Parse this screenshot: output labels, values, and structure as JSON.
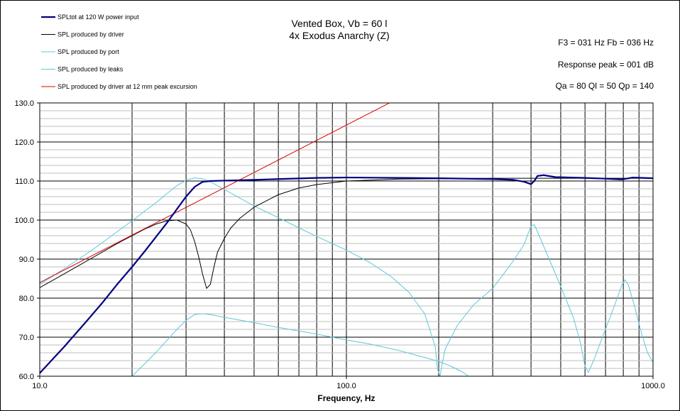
{
  "chart_data": {
    "type": "line",
    "title": "Vented Box, Vb = 60 l",
    "subtitle": "4x Exodus Anarchy (Z)",
    "xlabel": "Frequency, Hz",
    "ylabel": "",
    "xscale": "log",
    "xlim": [
      10,
      1000
    ],
    "ylim": [
      60,
      130
    ],
    "x_tick_labels": [
      "10.0",
      "100.0",
      "1000.0"
    ],
    "y_tick_labels": [
      "60.0",
      "70.0",
      "80.0",
      "90.0",
      "100.0",
      "110.0",
      "120.0",
      "130.0"
    ],
    "grid": true,
    "legend_position": "top-left",
    "info_lines": [
      "F3 = 031  Hz  Fb = 036  Hz",
      "Response peak = 001  dB",
      "Qa = 80   Ql = 50   Qp = 140"
    ],
    "series": [
      {
        "name": "SPLtot at 120 W power input",
        "color": "#000080",
        "width": 2.2,
        "points": [
          [
            10,
            60.8
          ],
          [
            12,
            67.5
          ],
          [
            14,
            73.5
          ],
          [
            16,
            78.8
          ],
          [
            18,
            83.8
          ],
          [
            20,
            88
          ],
          [
            22,
            92
          ],
          [
            24,
            95.8
          ],
          [
            26,
            99.3
          ],
          [
            28,
            102.8
          ],
          [
            30,
            106
          ],
          [
            32,
            108.5
          ],
          [
            34,
            109.8
          ],
          [
            36,
            110
          ],
          [
            40,
            110.1
          ],
          [
            50,
            110.3
          ],
          [
            60,
            110.5
          ],
          [
            80,
            110.8
          ],
          [
            100,
            110.9
          ],
          [
            150,
            110.8
          ],
          [
            200,
            110.7
          ],
          [
            300,
            110.5
          ],
          [
            350,
            110.3
          ],
          [
            380,
            109.8
          ],
          [
            400,
            109.2
          ],
          [
            410,
            110
          ],
          [
            420,
            111.3
          ],
          [
            440,
            111.5
          ],
          [
            480,
            111
          ],
          [
            600,
            110.8
          ],
          [
            700,
            110.6
          ],
          [
            790,
            110.4
          ],
          [
            820,
            110.6
          ],
          [
            860,
            110.9
          ],
          [
            1000,
            110.7
          ]
        ]
      },
      {
        "name": "SPL produced by driver",
        "color": "#000000",
        "width": 1,
        "points": [
          [
            10,
            82.7
          ],
          [
            12,
            86.2
          ],
          [
            14,
            89.2
          ],
          [
            16,
            91.8
          ],
          [
            18,
            94.1
          ],
          [
            20,
            96
          ],
          [
            22,
            97.7
          ],
          [
            24,
            99
          ],
          [
            26,
            99.8
          ],
          [
            28,
            100
          ],
          [
            30,
            99
          ],
          [
            31,
            97.5
          ],
          [
            32,
            94.5
          ],
          [
            33,
            90.5
          ],
          [
            34,
            86
          ],
          [
            35,
            82.5
          ],
          [
            36,
            83.5
          ],
          [
            37,
            88
          ],
          [
            38,
            91.8
          ],
          [
            40,
            95.3
          ],
          [
            42,
            98
          ],
          [
            45,
            100.5
          ],
          [
            50,
            103.3
          ],
          [
            60,
            106.5
          ],
          [
            70,
            108.2
          ],
          [
            80,
            109.1
          ],
          [
            100,
            110
          ],
          [
            150,
            110.5
          ],
          [
            200,
            110.6
          ],
          [
            300,
            110.7
          ],
          [
            1000,
            110.7
          ]
        ]
      },
      {
        "name": "SPL produced by port",
        "color": "#5bc8d8",
        "width": 1,
        "points": [
          [
            10,
            83.5
          ],
          [
            12,
            87.5
          ],
          [
            14,
            91
          ],
          [
            16,
            94.2
          ],
          [
            18,
            97.2
          ],
          [
            20,
            99.8
          ],
          [
            22,
            102.3
          ],
          [
            24,
            104.5
          ],
          [
            26,
            106.8
          ],
          [
            28,
            108.8
          ],
          [
            30,
            110.2
          ],
          [
            32,
            110.8
          ],
          [
            34,
            110.6
          ],
          [
            36,
            109.8
          ],
          [
            40,
            107.8
          ],
          [
            45,
            105.6
          ],
          [
            50,
            103.6
          ],
          [
            60,
            100.6
          ],
          [
            70,
            98
          ],
          [
            80,
            95.8
          ],
          [
            100,
            92.3
          ],
          [
            120,
            89
          ],
          [
            140,
            85.5
          ],
          [
            160,
            81.5
          ],
          [
            180,
            76
          ],
          [
            195,
            67.5
          ],
          [
            198,
            62
          ],
          [
            202,
            60
          ],
          [
            205,
            63
          ],
          [
            210,
            67
          ],
          [
            230,
            73
          ],
          [
            260,
            78.3
          ],
          [
            300,
            82.5
          ],
          [
            350,
            89.5
          ],
          [
            380,
            93.8
          ],
          [
            400,
            98.5
          ],
          [
            410,
            98.8
          ],
          [
            420,
            97
          ],
          [
            450,
            91.5
          ],
          [
            500,
            83
          ],
          [
            550,
            75
          ],
          [
            580,
            68.5
          ],
          [
            600,
            62.5
          ],
          [
            615,
            61
          ],
          [
            640,
            64
          ],
          [
            680,
            69.5
          ],
          [
            740,
            77
          ],
          [
            790,
            83.2
          ],
          [
            810,
            84.7
          ],
          [
            830,
            83.5
          ],
          [
            870,
            78
          ],
          [
            920,
            70.5
          ],
          [
            960,
            66
          ],
          [
            1000,
            63.5
          ]
        ]
      },
      {
        "name": "SPL produced by leaks",
        "color": "#5bc8d8",
        "width": 1,
        "points": [
          [
            20,
            60
          ],
          [
            22,
            63.2
          ],
          [
            24,
            66.2
          ],
          [
            26,
            69.2
          ],
          [
            28,
            72
          ],
          [
            30,
            74.3
          ],
          [
            32,
            75.8
          ],
          [
            34,
            76
          ],
          [
            36,
            75.8
          ],
          [
            40,
            75.1
          ],
          [
            50,
            73.7
          ],
          [
            60,
            72.5
          ],
          [
            80,
            70.8
          ],
          [
            100,
            69.3
          ],
          [
            120,
            68.2
          ],
          [
            150,
            66.5
          ],
          [
            180,
            64.8
          ],
          [
            200,
            63.8
          ],
          [
            220,
            62.5
          ],
          [
            240,
            61
          ],
          [
            250,
            60
          ]
        ]
      },
      {
        "name": "SPL produced by driver at 12 mm peak excursion",
        "color": "#dd0000",
        "width": 1,
        "points": [
          [
            10,
            84
          ],
          [
            155,
            132
          ]
        ]
      }
    ]
  }
}
